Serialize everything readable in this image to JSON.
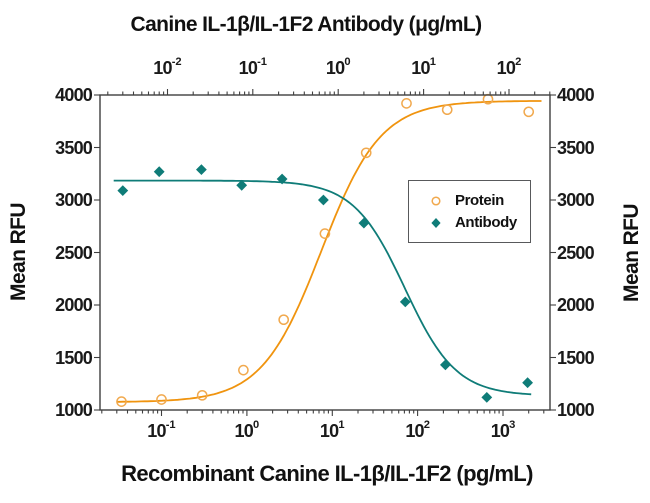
{
  "figure": {
    "top_title": "Canine IL-1β/IL-1F2 Antibody (μg/mL)",
    "bottom_title": "Recombinant Canine IL-1β/IL-1F2 (pg/mL)",
    "y_axis_title": "Mean RFU"
  },
  "legend": {
    "items": [
      {
        "label": "Protein",
        "marker": "open-circle",
        "color": "#F1A94E"
      },
      {
        "label": "Antibody",
        "marker": "filled-diamond",
        "color": "#0F7C78"
      }
    ],
    "border_color": "#58595b"
  },
  "chart_data": {
    "type": "scatter",
    "subtype": "dose-response-with-fitted-curves",
    "x_scale": "log",
    "grid": false,
    "legend_position": "inside-right",
    "y_axis": {
      "title": "Mean RFU",
      "min": 1000,
      "max": 4000,
      "tick_step": 500,
      "ticks": [
        4000,
        3500,
        3000,
        2500,
        2000,
        1500,
        1000
      ],
      "shown_on": [
        "left",
        "right"
      ]
    },
    "bottom_axis": {
      "title": "Recombinant Canine IL-1β/IL-1F2 (pg/mL)",
      "unit": "pg/mL",
      "base": 10,
      "tick_exponents": [
        -1,
        0,
        1,
        2,
        3
      ],
      "range_log": [
        -1.72,
        3.55
      ]
    },
    "top_axis": {
      "title": "Canine IL-1β/IL-1F2 Antibody (μg/mL)",
      "unit": "μg/mL",
      "base": 10,
      "tick_exponents": [
        -2,
        -1,
        0,
        1,
        2
      ],
      "range_log": [
        -2.79,
        2.48
      ]
    },
    "series": [
      {
        "name": "Protein",
        "axis": "bottom",
        "marker": "open-circle",
        "marker_color": "#F1A94E",
        "line_color": "#F0940F",
        "points": [
          {
            "x": 0.034,
            "y": 1080
          },
          {
            "x": 0.1,
            "y": 1100
          },
          {
            "x": 0.3,
            "y": 1140
          },
          {
            "x": 0.91,
            "y": 1380
          },
          {
            "x": 2.7,
            "y": 1860
          },
          {
            "x": 8.2,
            "y": 2680
          },
          {
            "x": 25,
            "y": 3450
          },
          {
            "x": 74,
            "y": 3920
          },
          {
            "x": 222,
            "y": 3860
          },
          {
            "x": 667,
            "y": 3960
          },
          {
            "x": 2000,
            "y": 3840
          }
        ],
        "fit": {
          "type": "4PL",
          "direction": "increasing",
          "bottom": 1075,
          "top": 3945,
          "log_ec50": 0.87,
          "hill": 1.25,
          "draw_log_range": [
            -1.52,
            3.45
          ]
        }
      },
      {
        "name": "Antibody",
        "axis": "top",
        "marker": "filled-diamond",
        "marker_color": "#0F7C78",
        "line_color": "#0F7C78",
        "points": [
          {
            "x": 0.003,
            "y": 3090
          },
          {
            "x": 0.008,
            "y": 3270
          },
          {
            "x": 0.025,
            "y": 3290
          },
          {
            "x": 0.074,
            "y": 3140
          },
          {
            "x": 0.22,
            "y": 3200
          },
          {
            "x": 0.67,
            "y": 3000
          },
          {
            "x": 2.0,
            "y": 2780
          },
          {
            "x": 6.1,
            "y": 2030
          },
          {
            "x": 18,
            "y": 1430
          },
          {
            "x": 55,
            "y": 1120
          },
          {
            "x": 165,
            "y": 1260
          }
        ],
        "fit": {
          "type": "4PL",
          "direction": "decreasing",
          "bottom": 1135,
          "top": 3185,
          "log_ic50": 0.78,
          "hill": 1.45,
          "draw_log_range": [
            -2.63,
            2.26
          ]
        }
      }
    ],
    "styles": {
      "spine_color": "#3f3f3f",
      "tick_color": "#3f3f3f",
      "text_color": "#1a1a1a",
      "background": "#ffffff"
    }
  }
}
